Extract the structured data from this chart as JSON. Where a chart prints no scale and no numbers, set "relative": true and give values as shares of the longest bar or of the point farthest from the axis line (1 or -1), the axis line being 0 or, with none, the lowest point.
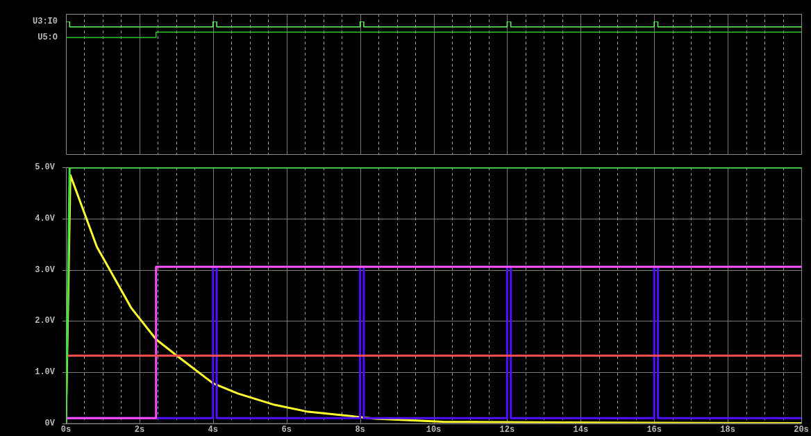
{
  "chart_data": [
    {
      "type": "step",
      "relative": true,
      "xlim": [
        0,
        20
      ],
      "tick_labels": false,
      "grid": "x",
      "xticks": [
        {
          "value": 0,
          "label": null
        },
        {
          "value": 0.5,
          "label": null
        },
        {
          "value": 1,
          "label": null
        },
        {
          "value": 1.5,
          "label": null
        },
        {
          "value": 2,
          "label": null
        },
        {
          "value": 2.5,
          "label": null
        },
        {
          "value": 3,
          "label": null
        },
        {
          "value": 3.5,
          "label": null
        },
        {
          "value": 4,
          "label": null
        },
        {
          "value": 4.5,
          "label": null
        },
        {
          "value": 5,
          "label": null
        },
        {
          "value": 5.5,
          "label": null
        },
        {
          "value": 6,
          "label": null
        },
        {
          "value": 6.5,
          "label": null
        },
        {
          "value": 7,
          "label": null
        },
        {
          "value": 7.5,
          "label": null
        },
        {
          "value": 8,
          "label": null
        },
        {
          "value": 8.5,
          "label": null
        },
        {
          "value": 9,
          "label": null
        },
        {
          "value": 9.5,
          "label": null
        },
        {
          "value": 10,
          "label": null
        },
        {
          "value": 10.5,
          "label": null
        },
        {
          "value": 11,
          "label": null
        },
        {
          "value": 11.5,
          "label": null
        },
        {
          "value": 12,
          "label": null
        },
        {
          "value": 12.5,
          "label": null
        },
        {
          "value": 13,
          "label": null
        },
        {
          "value": 13.5,
          "label": null
        },
        {
          "value": 14,
          "label": null
        },
        {
          "value": 14.5,
          "label": null
        },
        {
          "value": 15,
          "label": null
        },
        {
          "value": 15.5,
          "label": null
        },
        {
          "value": 16,
          "label": null
        },
        {
          "value": 16.5,
          "label": null
        },
        {
          "value": 17,
          "label": null
        },
        {
          "value": 17.5,
          "label": null
        },
        {
          "value": 18,
          "label": null
        },
        {
          "value": 18.5,
          "label": null
        },
        {
          "value": 19,
          "label": null
        },
        {
          "value": 19.5,
          "label": null
        },
        {
          "value": 20,
          "label": null
        }
      ],
      "series": [
        {
          "name": "U3:I0",
          "color": "#60ff60",
          "x": [
            0,
            0.1,
            4.0,
            4.1,
            8.0,
            8.1,
            12.0,
            12.1,
            16.0,
            16.1,
            20
          ],
          "values": [
            1,
            0.96,
            1,
            0.96,
            1,
            0.96,
            1,
            0.96,
            1,
            0.96,
            0.96
          ]
        },
        {
          "name": "U5:O",
          "color": "#30c030",
          "x": [
            0,
            2.45,
            20
          ],
          "values": [
            0.88,
            0.92,
            0.92
          ]
        }
      ]
    },
    {
      "type": "line",
      "xlim": [
        0,
        20
      ],
      "ylim": [
        0,
        5
      ],
      "grid": true,
      "xticks": [
        {
          "value": 0,
          "label": "0s"
        },
        {
          "value": 0.5,
          "label": null
        },
        {
          "value": 1,
          "label": null
        },
        {
          "value": 1.5,
          "label": null
        },
        {
          "value": 2,
          "label": "2s"
        },
        {
          "value": 2.5,
          "label": null
        },
        {
          "value": 3,
          "label": null
        },
        {
          "value": 3.5,
          "label": null
        },
        {
          "value": 4,
          "label": "4s"
        },
        {
          "value": 4.5,
          "label": null
        },
        {
          "value": 5,
          "label": null
        },
        {
          "value": 5.5,
          "label": null
        },
        {
          "value": 6,
          "label": "6s"
        },
        {
          "value": 6.5,
          "label": null
        },
        {
          "value": 7,
          "label": null
        },
        {
          "value": 7.5,
          "label": null
        },
        {
          "value": 8,
          "label": "8s"
        },
        {
          "value": 8.5,
          "label": null
        },
        {
          "value": 9,
          "label": null
        },
        {
          "value": 9.5,
          "label": null
        },
        {
          "value": 10,
          "label": "10s"
        },
        {
          "value": 10.5,
          "label": null
        },
        {
          "value": 11,
          "label": null
        },
        {
          "value": 11.5,
          "label": null
        },
        {
          "value": 12,
          "label": "12s"
        },
        {
          "value": 12.5,
          "label": null
        },
        {
          "value": 13,
          "label": null
        },
        {
          "value": 13.5,
          "label": null
        },
        {
          "value": 14,
          "label": "14s"
        },
        {
          "value": 14.5,
          "label": null
        },
        {
          "value": 15,
          "label": null
        },
        {
          "value": 15.5,
          "label": null
        },
        {
          "value": 16,
          "label": "16s"
        },
        {
          "value": 16.5,
          "label": null
        },
        {
          "value": 17,
          "label": null
        },
        {
          "value": 17.5,
          "label": null
        },
        {
          "value": 18,
          "label": "18s"
        },
        {
          "value": 18.5,
          "label": null
        },
        {
          "value": 19,
          "label": null
        },
        {
          "value": 19.5,
          "label": null
        },
        {
          "value": 20,
          "label": "20s"
        }
      ],
      "yticks": [
        {
          "value": 0,
          "label": "0V"
        },
        {
          "value": 1,
          "label": "1.0V"
        },
        {
          "value": 2,
          "label": "2.0V"
        },
        {
          "value": 3,
          "label": "3.0V"
        },
        {
          "value": 4,
          "label": "4.0V"
        },
        {
          "value": 5,
          "label": "5.0V"
        }
      ],
      "series": [
        {
          "color": "#40e040",
          "x": [
            0,
            0.1,
            20
          ],
          "values": [
            0,
            5,
            5
          ]
        },
        {
          "color": "#ff5050",
          "x": [
            0,
            20
          ],
          "values": [
            1.32,
            1.32
          ]
        },
        {
          "type": "step",
          "color": "#ff50ff",
          "x": [
            0,
            2.45,
            20
          ],
          "values": [
            0.1,
            3.06,
            3.06
          ]
        },
        {
          "type": "step",
          "color": "#5010ff",
          "x": [
            0,
            4.0,
            4.1,
            8.0,
            8.1,
            12.0,
            12.1,
            16.0,
            16.1,
            20
          ],
          "values": [
            0.1,
            3.06,
            0.1,
            3.06,
            0.1,
            3.06,
            0.1,
            3.06,
            0.1,
            0.1
          ]
        },
        {
          "color": "#ffff30",
          "x": [
            0,
            0.12,
            0.84,
            1.77,
            2.45,
            3.07,
            4.0,
            4.68,
            5.67,
            6.54,
            8.4,
            10.25,
            12.5,
            14.6,
            20
          ],
          "values": [
            0,
            4.85,
            3.45,
            2.26,
            1.64,
            1.29,
            0.78,
            0.58,
            0.36,
            0.23,
            0.09,
            0.03,
            0.02,
            0.01,
            0
          ]
        }
      ]
    }
  ]
}
